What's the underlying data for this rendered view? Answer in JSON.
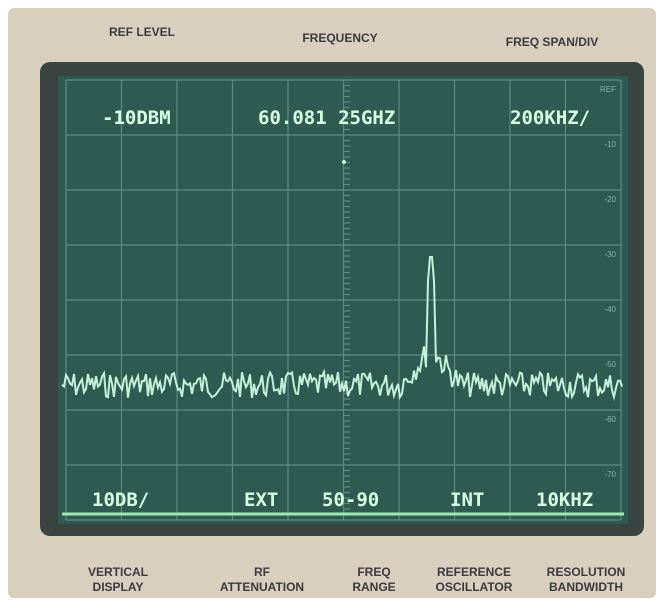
{
  "panel_top": {
    "ref_level": "REF LEVEL",
    "frequency": "FREQUENCY",
    "freq_span": "FREQ SPAN/DIV"
  },
  "screen_top": {
    "ref_level": "-10DBM",
    "frequency": "60.081 25GHZ",
    "span": "200KHZ/"
  },
  "screen_bottom": {
    "vertical": "10DB/",
    "rf_attenuation": "EXT",
    "freq_range": "50-90",
    "reference": "INT",
    "bandwidth": "10KHZ"
  },
  "scale": [
    "REF",
    "-10",
    "-20",
    "-30",
    "-40",
    "-50",
    "-60",
    "-70"
  ],
  "panel_bottom": [
    [
      "VERTICAL",
      "DISPLAY"
    ],
    [
      "RF",
      "ATTENUATION"
    ],
    [
      "FREQ",
      "RANGE"
    ],
    [
      "REFERENCE",
      "OSCILLATOR"
    ],
    [
      "RESOLUTION",
      "BANDWIDTH"
    ]
  ]
}
